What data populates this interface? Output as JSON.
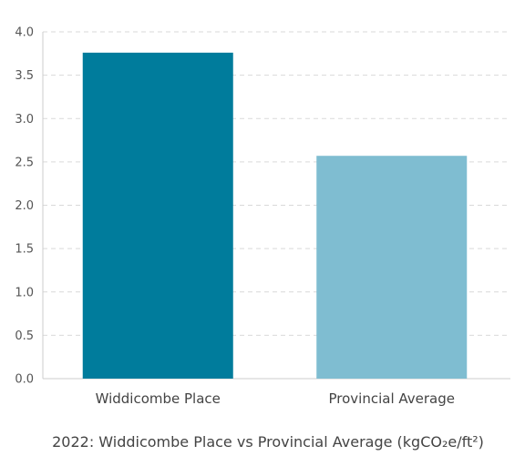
{
  "chart_data": {
    "type": "bar",
    "title": "2022: Widdicombe Place vs Provincial Average (kgCO₂e/ft²)",
    "xlabel": "",
    "ylabel": "",
    "categories": [
      "Widdicombe Place",
      "Provincial Average"
    ],
    "values": [
      3.76,
      2.57
    ],
    "ylim": [
      0,
      4.0
    ],
    "yticks": [
      "0.0",
      "0.5",
      "1.0",
      "1.5",
      "2.0",
      "2.5",
      "3.0",
      "3.5",
      "4.0"
    ],
    "grid": true,
    "legend": "none",
    "colors": [
      "#007c9c",
      "#7fbdd1"
    ]
  }
}
